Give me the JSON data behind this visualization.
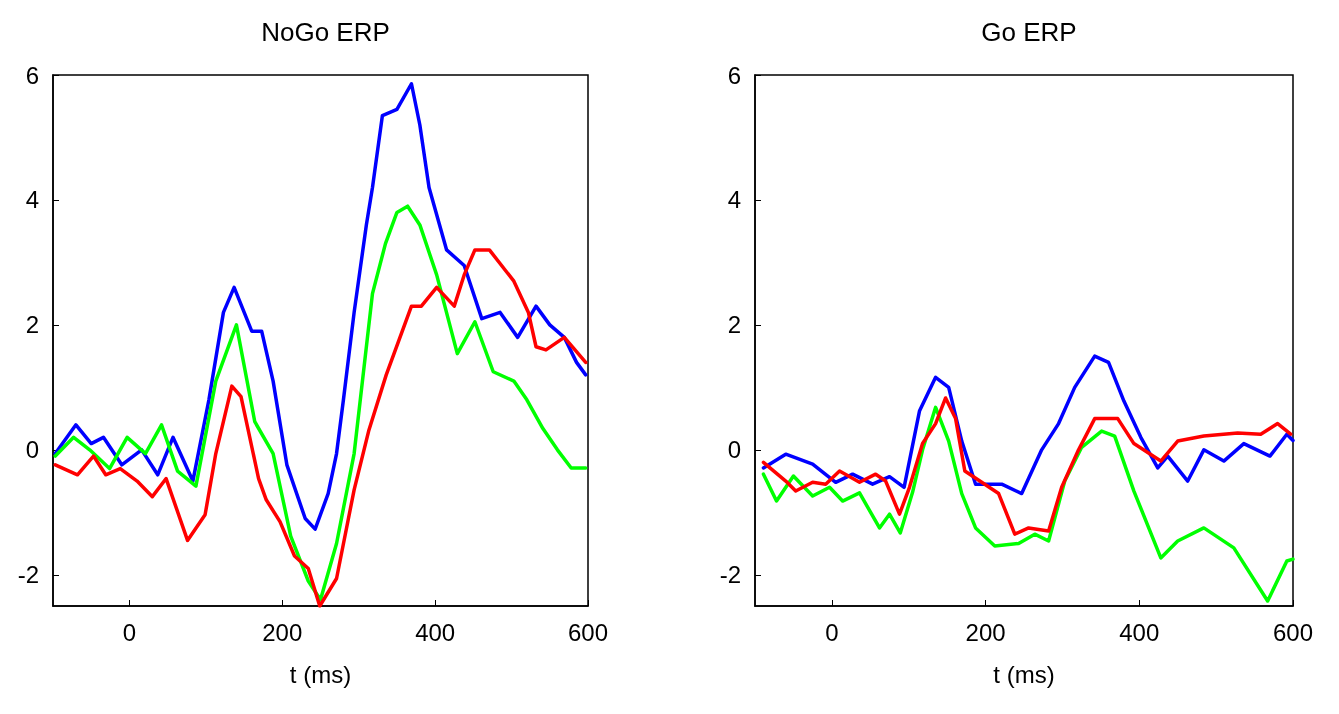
{
  "chart_data": [
    {
      "type": "line",
      "title": "NoGo ERP",
      "xlabel": "t (ms)",
      "xlim": [
        -100,
        600
      ],
      "xticks": [
        0,
        200,
        400,
        600
      ],
      "ylim": [
        -2.5,
        6
      ],
      "yticks": [
        -2,
        0,
        2,
        4,
        6
      ],
      "grid": false,
      "marker": "none",
      "line_style": "solid",
      "series": [
        {
          "color": "#0000ff",
          "x": [
            -97,
            -70,
            -50,
            -34,
            -10,
            16,
            37,
            57,
            83,
            104,
            123,
            137,
            160,
            173,
            188,
            206,
            230,
            243,
            260,
            271,
            280,
            294,
            310,
            318,
            331,
            350,
            369,
            380,
            392,
            415,
            438,
            461,
            485,
            508,
            532,
            550,
            569,
            585,
            597
          ],
          "values": [
            -0.06,
            0.4,
            0.1,
            0.2,
            -0.24,
            0,
            -0.4,
            0.2,
            -0.5,
            0.8,
            2.2,
            2.6,
            1.9,
            1.9,
            1.1,
            -0.24,
            -1.1,
            -1.27,
            -0.7,
            -0.06,
            0.8,
            2.2,
            3.6,
            4.2,
            5.35,
            5.45,
            5.86,
            5.2,
            4.2,
            3.2,
            2.95,
            2.1,
            2.2,
            1.8,
            2.3,
            2.0,
            1.8,
            1.4,
            1.2
          ]
        },
        {
          "color": "#00ff00",
          "x": [
            -97,
            -73,
            -52,
            -26,
            -3,
            21,
            42,
            63,
            87,
            113,
            140,
            164,
            188,
            211,
            234,
            250,
            271,
            294,
            318,
            335,
            350,
            364,
            380,
            402,
            429,
            452,
            476,
            503,
            520,
            541,
            560,
            578,
            597
          ],
          "values": [
            -0.1,
            0.2,
            0.0,
            -0.3,
            0.2,
            -0.06,
            0.4,
            -0.34,
            -0.58,
            1.1,
            2.0,
            0.45,
            -0.06,
            -1.38,
            -2.1,
            -2.4,
            -1.5,
            -0.06,
            2.5,
            3.3,
            3.8,
            3.9,
            3.6,
            2.8,
            1.54,
            2.05,
            1.25,
            1.1,
            0.8,
            0.34,
            0.0,
            -0.29,
            -0.29
          ]
        },
        {
          "color": "#ff0000",
          "x": [
            -97,
            -68,
            -47,
            -31,
            -12,
            10,
            30,
            48,
            76,
            99,
            113,
            134,
            146,
            169,
            179,
            197,
            216,
            234,
            249,
            271,
            294,
            313,
            336,
            369,
            382,
            402,
            425,
            438,
            452,
            471,
            503,
            522,
            532,
            545,
            569,
            597
          ],
          "values": [
            -0.24,
            -0.4,
            -0.1,
            -0.4,
            -0.3,
            -0.5,
            -0.75,
            -0.46,
            -1.45,
            -1.04,
            -0.06,
            1.02,
            0.85,
            -0.46,
            -0.8,
            -1.15,
            -1.7,
            -1.9,
            -2.5,
            -2.06,
            -0.64,
            0.3,
            1.2,
            2.3,
            2.3,
            2.6,
            2.3,
            2.8,
            3.2,
            3.2,
            2.7,
            2.2,
            1.65,
            1.6,
            1.8,
            1.4
          ]
        }
      ]
    },
    {
      "type": "line",
      "title": "Go ERP",
      "xlabel": "t (ms)",
      "xlim": [
        -100,
        600
      ],
      "xticks": [
        0,
        200,
        400,
        600
      ],
      "ylim": [
        -2.5,
        6
      ],
      "yticks": [
        -2,
        0,
        2,
        4,
        6
      ],
      "grid": false,
      "marker": "none",
      "line_style": "solid",
      "series": [
        {
          "color": "#0000ff",
          "x": [
            -89,
            -60,
            -25,
            5,
            27,
            53,
            75,
            94,
            114,
            135,
            152,
            169,
            187,
            221,
            247,
            273,
            295,
            316,
            342,
            360,
            380,
            402,
            424,
            437,
            463,
            484,
            510,
            536,
            570,
            592,
            600
          ],
          "values": [
            -0.29,
            -0.07,
            -0.23,
            -0.52,
            -0.39,
            -0.55,
            -0.43,
            -0.6,
            0.62,
            1.16,
            1.0,
            0.14,
            -0.55,
            -0.55,
            -0.7,
            0,
            0.42,
            1.0,
            1.5,
            1.4,
            0.78,
            0.2,
            -0.29,
            -0.1,
            -0.5,
            0,
            -0.18,
            0.1,
            -0.1,
            0.25,
            0.15
          ]
        },
        {
          "color": "#00ff00",
          "x": [
            -89,
            -72,
            -50,
            -25,
            -3,
            14,
            36,
            62,
            75,
            89,
            105,
            118,
            135,
            152,
            169,
            187,
            212,
            243,
            264,
            282,
            303,
            325,
            351,
            368,
            393,
            428,
            450,
            484,
            523,
            567,
            592,
            600
          ],
          "values": [
            -0.39,
            -0.82,
            -0.42,
            -0.74,
            -0.6,
            -0.82,
            -0.69,
            -1.25,
            -1.03,
            -1.33,
            -0.68,
            0,
            0.68,
            0.14,
            -0.7,
            -1.25,
            -1.54,
            -1.5,
            -1.35,
            -1.46,
            -0.5,
            0.04,
            0.3,
            0.22,
            -0.66,
            -1.73,
            -1.46,
            -1.25,
            -1.57,
            -2.42,
            -1.78,
            -1.75
          ]
        },
        {
          "color": "#ff0000",
          "x": [
            -89,
            -60,
            -47,
            -25,
            -8,
            10,
            36,
            57,
            70,
            88,
            101,
            118,
            135,
            148,
            161,
            173,
            195,
            217,
            238,
            256,
            282,
            299,
            321,
            342,
            372,
            393,
            428,
            450,
            484,
            528,
            558,
            580,
            597
          ],
          "values": [
            -0.2,
            -0.5,
            -0.66,
            -0.52,
            -0.55,
            -0.34,
            -0.52,
            -0.39,
            -0.5,
            -1.03,
            -0.6,
            0.1,
            0.42,
            0.83,
            0.5,
            -0.34,
            -0.52,
            -0.7,
            -1.35,
            -1.25,
            -1.3,
            -0.6,
            0,
            0.5,
            0.5,
            0.1,
            -0.18,
            0.14,
            0.22,
            0.27,
            0.25,
            0.42,
            0.25
          ]
        }
      ]
    }
  ]
}
